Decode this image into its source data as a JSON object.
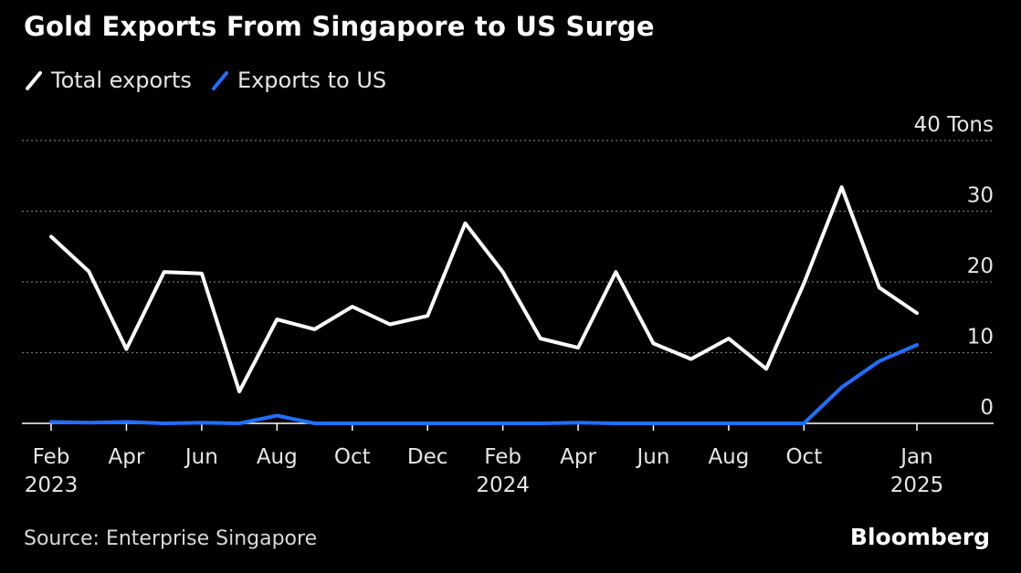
{
  "title": "Gold Exports From Singapore to US Surge",
  "legend": [
    {
      "name": "Total exports",
      "color": "#ffffff"
    },
    {
      "name": "Exports to US",
      "color": "#1f6fff"
    }
  ],
  "source": "Source: Enterprise Singapore",
  "brand": "Bloomberg",
  "chart_data": {
    "type": "line",
    "title": "Gold Exports From Singapore to US Surge",
    "unit": "Tons",
    "ylim": [
      0,
      40
    ],
    "yticks": [
      0,
      10,
      20,
      30,
      40
    ],
    "ytick_labels": [
      "0",
      "10",
      "20",
      "30",
      "40 Tons"
    ],
    "grid": true,
    "legend_position": "top-left",
    "x": [
      "2023-02",
      "2023-03",
      "2023-04",
      "2023-05",
      "2023-06",
      "2023-07",
      "2023-08",
      "2023-09",
      "2023-10",
      "2023-11",
      "2023-12",
      "2024-01",
      "2024-02",
      "2024-03",
      "2024-04",
      "2024-05",
      "2024-06",
      "2024-07",
      "2024-08",
      "2024-09",
      "2024-10",
      "2024-11",
      "2024-12",
      "2025-01"
    ],
    "xtick_labels": [
      {
        "x": "2023-02",
        "month": "Feb",
        "year": "2023"
      },
      {
        "x": "2023-04",
        "month": "Apr",
        "year": ""
      },
      {
        "x": "2023-06",
        "month": "Jun",
        "year": ""
      },
      {
        "x": "2023-08",
        "month": "Aug",
        "year": ""
      },
      {
        "x": "2023-10",
        "month": "Oct",
        "year": ""
      },
      {
        "x": "2023-12",
        "month": "Dec",
        "year": ""
      },
      {
        "x": "2024-02",
        "month": "Feb",
        "year": "2024"
      },
      {
        "x": "2024-04",
        "month": "Apr",
        "year": ""
      },
      {
        "x": "2024-06",
        "month": "Jun",
        "year": ""
      },
      {
        "x": "2024-08",
        "month": "Aug",
        "year": ""
      },
      {
        "x": "2024-10",
        "month": "Oct",
        "year": ""
      },
      {
        "x": "2025-01",
        "month": "Jan",
        "year": "2025"
      }
    ],
    "series": [
      {
        "name": "Total exports",
        "color": "#ffffff",
        "values": [
          26.4,
          21.5,
          10.5,
          21.4,
          21.2,
          4.5,
          14.7,
          13.3,
          16.5,
          14.0,
          15.2,
          28.3,
          21.4,
          12.0,
          10.7,
          21.4,
          11.3,
          9.1,
          12.0,
          7.7,
          19.8,
          33.4,
          19.2,
          15.6
        ]
      },
      {
        "name": "Exports to US",
        "color": "#1f6fff",
        "values": [
          0.2,
          0.1,
          0.2,
          0.0,
          0.1,
          0.0,
          1.1,
          0.0,
          0.0,
          0.0,
          0.0,
          0.0,
          0.0,
          0.0,
          0.1,
          0.0,
          0.0,
          0.0,
          0.0,
          0.0,
          0.0,
          5.1,
          8.8,
          11.1
        ]
      }
    ]
  }
}
